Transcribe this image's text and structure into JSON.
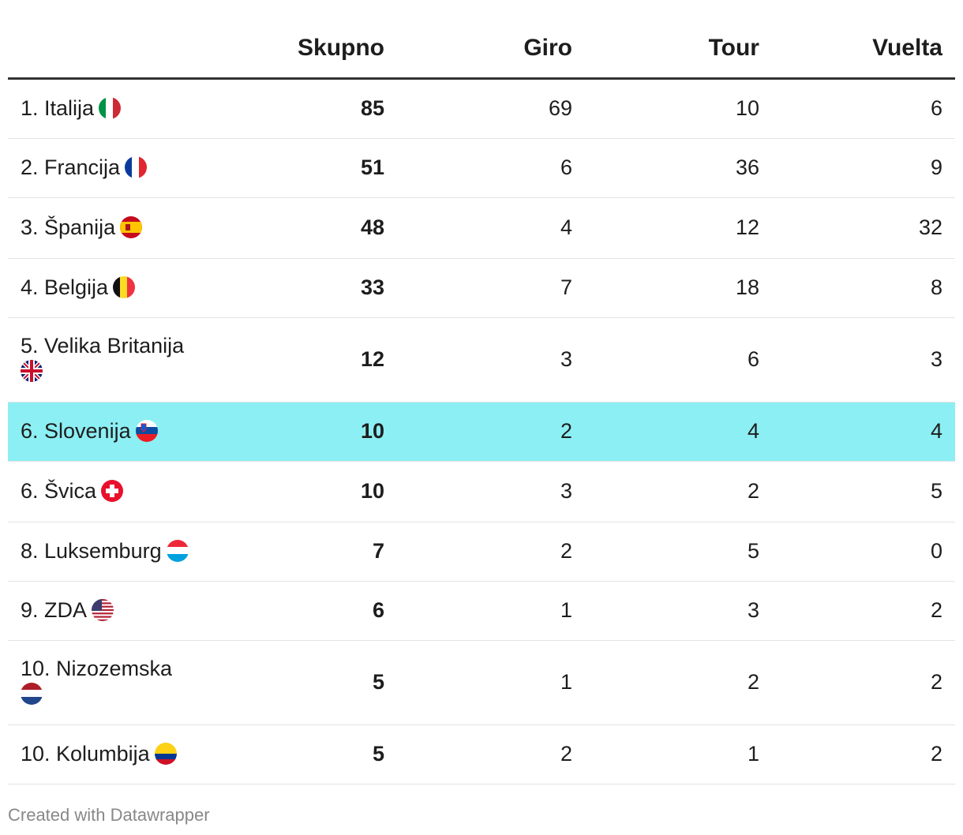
{
  "chart_data": {
    "type": "table",
    "columns": [
      "",
      "Skupno",
      "Giro",
      "Tour",
      "Vuelta"
    ],
    "rows": [
      {
        "rank": "1.",
        "country": "Italija",
        "flag": "italy-flag",
        "skupno": 85,
        "giro": 69,
        "tour": 10,
        "vuelta": 6
      },
      {
        "rank": "2.",
        "country": "Francija",
        "flag": "france-flag",
        "skupno": 51,
        "giro": 6,
        "tour": 36,
        "vuelta": 9
      },
      {
        "rank": "3.",
        "country": "Španija",
        "flag": "spain-flag",
        "skupno": 48,
        "giro": 4,
        "tour": 12,
        "vuelta": 32
      },
      {
        "rank": "4.",
        "country": "Belgija",
        "flag": "belgium-flag",
        "skupno": 33,
        "giro": 7,
        "tour": 18,
        "vuelta": 8
      },
      {
        "rank": "5.",
        "country": "Velika Britanija",
        "flag": "uk-flag",
        "skupno": 12,
        "giro": 3,
        "tour": 6,
        "vuelta": 3
      },
      {
        "rank": "6.",
        "country": "Slovenija",
        "flag": "slovenia-flag",
        "skupno": 10,
        "giro": 2,
        "tour": 4,
        "vuelta": 4,
        "highlight": true
      },
      {
        "rank": "6.",
        "country": "Švica",
        "flag": "switzerland-flag",
        "skupno": 10,
        "giro": 3,
        "tour": 2,
        "vuelta": 5
      },
      {
        "rank": "8.",
        "country": "Luksemburg",
        "flag": "luxembourg-flag",
        "skupno": 7,
        "giro": 2,
        "tour": 5,
        "vuelta": 0
      },
      {
        "rank": "9.",
        "country": "ZDA",
        "flag": "usa-flag",
        "skupno": 6,
        "giro": 1,
        "tour": 3,
        "vuelta": 2
      },
      {
        "rank": "10.",
        "country": "Nizozemska",
        "flag": "netherlands-flag",
        "skupno": 5,
        "giro": 1,
        "tour": 2,
        "vuelta": 2
      },
      {
        "rank": "10.",
        "country": "Kolumbija",
        "flag": "colombia-flag",
        "skupno": 5,
        "giro": 2,
        "tour": 1,
        "vuelta": 2
      }
    ],
    "highlight_color": "#8ceff3"
  },
  "footer": "Created with Datawrapper"
}
